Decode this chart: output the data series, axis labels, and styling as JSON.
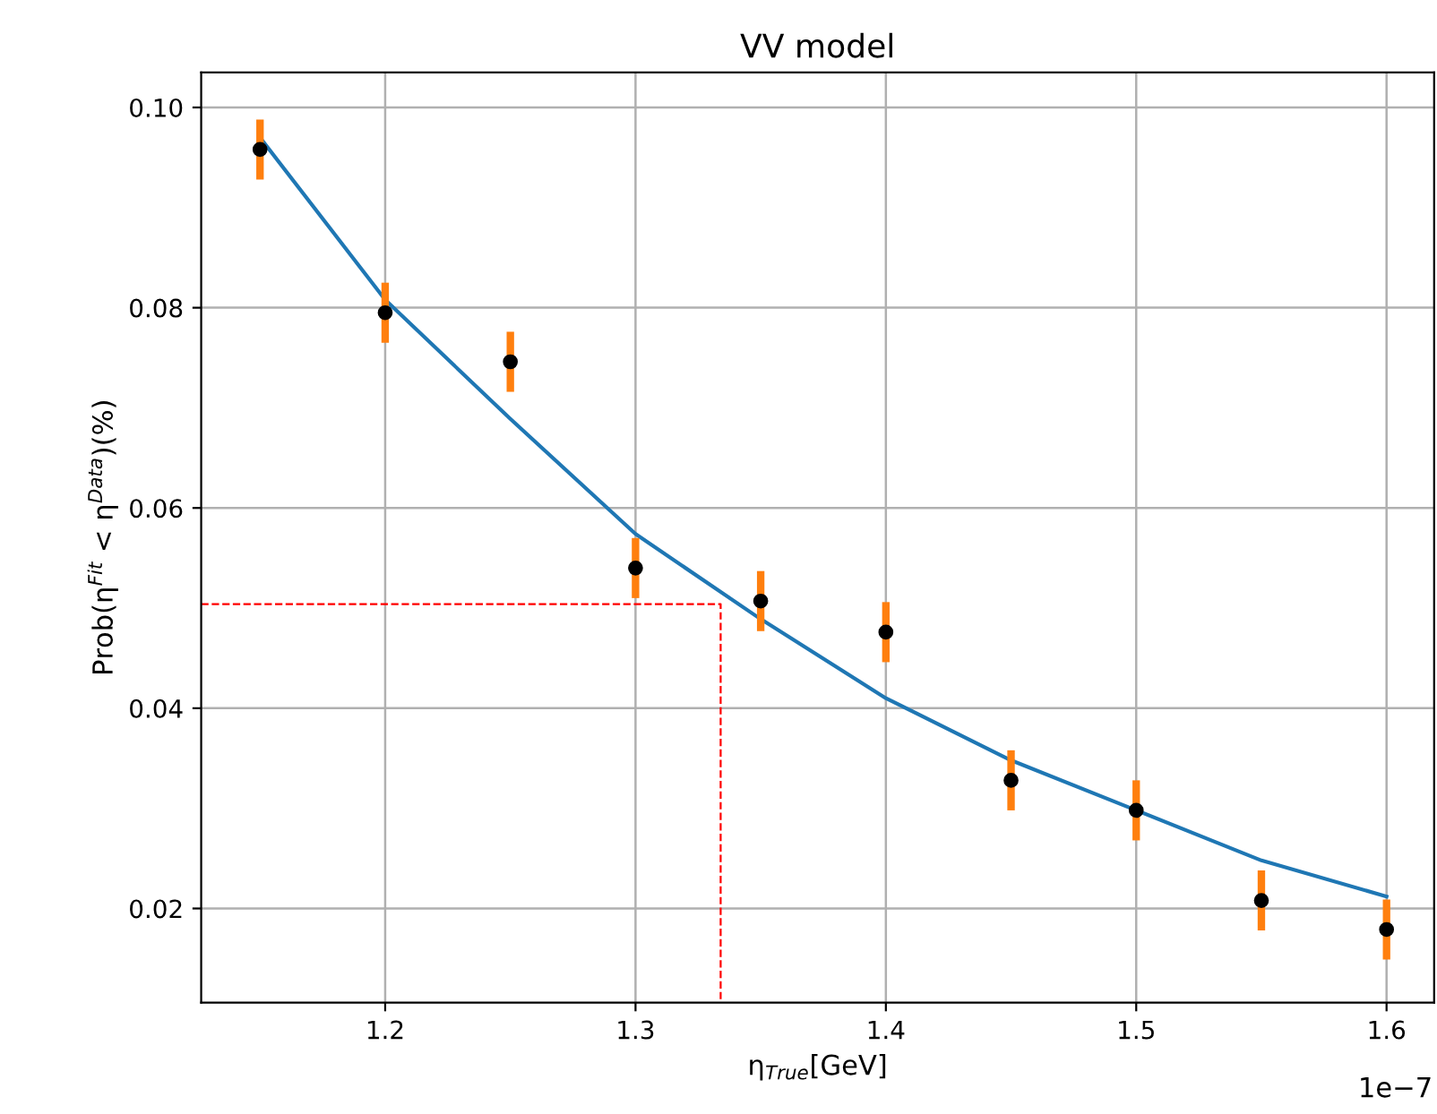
{
  "chart_data": {
    "type": "scatter",
    "title": "VV model",
    "xlabel": "η$_{True}$[GeV]",
    "ylabel": "Prob(η$^{Fit}$ < η$^{Data}$)(%)",
    "xlim": [
      1.1265,
      1.619
    ],
    "ylim": [
      0.0106,
      0.1035
    ],
    "xticks": [
      1.2,
      1.3,
      1.4,
      1.5,
      1.6
    ],
    "yticks": [
      0.02,
      0.04,
      0.06,
      0.08,
      {
        "value": 0.1,
        "label": "0.10"
      }
    ],
    "grid": true,
    "annotations": [
      "1e−7"
    ],
    "series": [
      {
        "type": "line",
        "color": "#1f77b4",
        "line_style": "solid",
        "x": [
          1.15,
          1.2,
          1.25,
          1.3,
          1.35,
          1.4,
          1.45,
          1.5,
          1.55,
          1.6
        ],
        "values": [
          0.097,
          0.0808,
          0.0689,
          0.0574,
          0.0489,
          0.041,
          0.0348,
          0.0298,
          0.0248,
          0.0212
        ]
      },
      {
        "type": "line",
        "color": "#ff0000",
        "line_style": "dashed",
        "x": [
          1.1265,
          1.334,
          1.334
        ],
        "values": [
          0.0504,
          0.0504,
          0.0106
        ]
      },
      {
        "color": "#000000",
        "marker": "circle",
        "x": [
          1.15,
          1.2,
          1.25,
          1.3,
          1.35,
          1.4,
          1.45,
          1.5,
          1.55,
          1.6
        ],
        "values": [
          0.0958,
          0.0795,
          0.0746,
          0.054,
          0.0507,
          0.0476,
          0.0328,
          0.0298,
          0.0208,
          0.0179
        ],
        "errors": [
          0.003,
          0.003,
          0.003,
          0.003,
          0.003,
          0.003,
          0.003,
          0.003,
          0.003,
          0.003
        ]
      }
    ]
  }
}
